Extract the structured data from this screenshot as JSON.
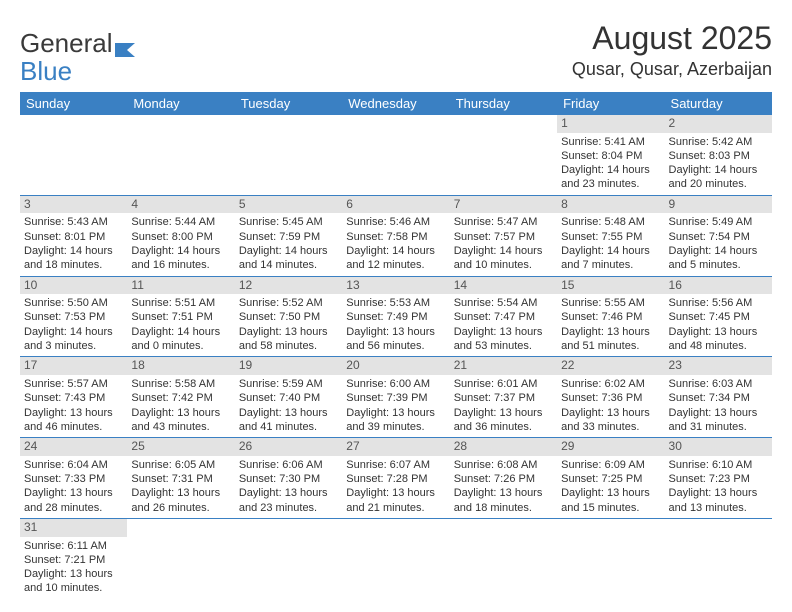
{
  "logo": {
    "text1": "General",
    "text2": "Blue"
  },
  "title": "August 2025",
  "location": "Qusar, Qusar, Azerbaijan",
  "colors": {
    "header_bg": "#3a80c3",
    "header_fg": "#ffffff",
    "daynum_bg": "#e3e3e3",
    "row_divider": "#3a80c3",
    "text": "#333333"
  },
  "day_headers": [
    "Sunday",
    "Monday",
    "Tuesday",
    "Wednesday",
    "Thursday",
    "Friday",
    "Saturday"
  ],
  "weeks": [
    [
      {
        "num": "",
        "lines": []
      },
      {
        "num": "",
        "lines": []
      },
      {
        "num": "",
        "lines": []
      },
      {
        "num": "",
        "lines": []
      },
      {
        "num": "",
        "lines": []
      },
      {
        "num": "1",
        "lines": [
          "Sunrise: 5:41 AM",
          "Sunset: 8:04 PM",
          "Daylight: 14 hours and 23 minutes."
        ]
      },
      {
        "num": "2",
        "lines": [
          "Sunrise: 5:42 AM",
          "Sunset: 8:03 PM",
          "Daylight: 14 hours and 20 minutes."
        ]
      }
    ],
    [
      {
        "num": "3",
        "lines": [
          "Sunrise: 5:43 AM",
          "Sunset: 8:01 PM",
          "Daylight: 14 hours and 18 minutes."
        ]
      },
      {
        "num": "4",
        "lines": [
          "Sunrise: 5:44 AM",
          "Sunset: 8:00 PM",
          "Daylight: 14 hours and 16 minutes."
        ]
      },
      {
        "num": "5",
        "lines": [
          "Sunrise: 5:45 AM",
          "Sunset: 7:59 PM",
          "Daylight: 14 hours and 14 minutes."
        ]
      },
      {
        "num": "6",
        "lines": [
          "Sunrise: 5:46 AM",
          "Sunset: 7:58 PM",
          "Daylight: 14 hours and 12 minutes."
        ]
      },
      {
        "num": "7",
        "lines": [
          "Sunrise: 5:47 AM",
          "Sunset: 7:57 PM",
          "Daylight: 14 hours and 10 minutes."
        ]
      },
      {
        "num": "8",
        "lines": [
          "Sunrise: 5:48 AM",
          "Sunset: 7:55 PM",
          "Daylight: 14 hours and 7 minutes."
        ]
      },
      {
        "num": "9",
        "lines": [
          "Sunrise: 5:49 AM",
          "Sunset: 7:54 PM",
          "Daylight: 14 hours and 5 minutes."
        ]
      }
    ],
    [
      {
        "num": "10",
        "lines": [
          "Sunrise: 5:50 AM",
          "Sunset: 7:53 PM",
          "Daylight: 14 hours and 3 minutes."
        ]
      },
      {
        "num": "11",
        "lines": [
          "Sunrise: 5:51 AM",
          "Sunset: 7:51 PM",
          "Daylight: 14 hours and 0 minutes."
        ]
      },
      {
        "num": "12",
        "lines": [
          "Sunrise: 5:52 AM",
          "Sunset: 7:50 PM",
          "Daylight: 13 hours and 58 minutes."
        ]
      },
      {
        "num": "13",
        "lines": [
          "Sunrise: 5:53 AM",
          "Sunset: 7:49 PM",
          "Daylight: 13 hours and 56 minutes."
        ]
      },
      {
        "num": "14",
        "lines": [
          "Sunrise: 5:54 AM",
          "Sunset: 7:47 PM",
          "Daylight: 13 hours and 53 minutes."
        ]
      },
      {
        "num": "15",
        "lines": [
          "Sunrise: 5:55 AM",
          "Sunset: 7:46 PM",
          "Daylight: 13 hours and 51 minutes."
        ]
      },
      {
        "num": "16",
        "lines": [
          "Sunrise: 5:56 AM",
          "Sunset: 7:45 PM",
          "Daylight: 13 hours and 48 minutes."
        ]
      }
    ],
    [
      {
        "num": "17",
        "lines": [
          "Sunrise: 5:57 AM",
          "Sunset: 7:43 PM",
          "Daylight: 13 hours and 46 minutes."
        ]
      },
      {
        "num": "18",
        "lines": [
          "Sunrise: 5:58 AM",
          "Sunset: 7:42 PM",
          "Daylight: 13 hours and 43 minutes."
        ]
      },
      {
        "num": "19",
        "lines": [
          "Sunrise: 5:59 AM",
          "Sunset: 7:40 PM",
          "Daylight: 13 hours and 41 minutes."
        ]
      },
      {
        "num": "20",
        "lines": [
          "Sunrise: 6:00 AM",
          "Sunset: 7:39 PM",
          "Daylight: 13 hours and 39 minutes."
        ]
      },
      {
        "num": "21",
        "lines": [
          "Sunrise: 6:01 AM",
          "Sunset: 7:37 PM",
          "Daylight: 13 hours and 36 minutes."
        ]
      },
      {
        "num": "22",
        "lines": [
          "Sunrise: 6:02 AM",
          "Sunset: 7:36 PM",
          "Daylight: 13 hours and 33 minutes."
        ]
      },
      {
        "num": "23",
        "lines": [
          "Sunrise: 6:03 AM",
          "Sunset: 7:34 PM",
          "Daylight: 13 hours and 31 minutes."
        ]
      }
    ],
    [
      {
        "num": "24",
        "lines": [
          "Sunrise: 6:04 AM",
          "Sunset: 7:33 PM",
          "Daylight: 13 hours and 28 minutes."
        ]
      },
      {
        "num": "25",
        "lines": [
          "Sunrise: 6:05 AM",
          "Sunset: 7:31 PM",
          "Daylight: 13 hours and 26 minutes."
        ]
      },
      {
        "num": "26",
        "lines": [
          "Sunrise: 6:06 AM",
          "Sunset: 7:30 PM",
          "Daylight: 13 hours and 23 minutes."
        ]
      },
      {
        "num": "27",
        "lines": [
          "Sunrise: 6:07 AM",
          "Sunset: 7:28 PM",
          "Daylight: 13 hours and 21 minutes."
        ]
      },
      {
        "num": "28",
        "lines": [
          "Sunrise: 6:08 AM",
          "Sunset: 7:26 PM",
          "Daylight: 13 hours and 18 minutes."
        ]
      },
      {
        "num": "29",
        "lines": [
          "Sunrise: 6:09 AM",
          "Sunset: 7:25 PM",
          "Daylight: 13 hours and 15 minutes."
        ]
      },
      {
        "num": "30",
        "lines": [
          "Sunrise: 6:10 AM",
          "Sunset: 7:23 PM",
          "Daylight: 13 hours and 13 minutes."
        ]
      }
    ],
    [
      {
        "num": "31",
        "lines": [
          "Sunrise: 6:11 AM",
          "Sunset: 7:21 PM",
          "Daylight: 13 hours and 10 minutes."
        ]
      },
      {
        "num": "",
        "lines": []
      },
      {
        "num": "",
        "lines": []
      },
      {
        "num": "",
        "lines": []
      },
      {
        "num": "",
        "lines": []
      },
      {
        "num": "",
        "lines": []
      },
      {
        "num": "",
        "lines": []
      }
    ]
  ]
}
